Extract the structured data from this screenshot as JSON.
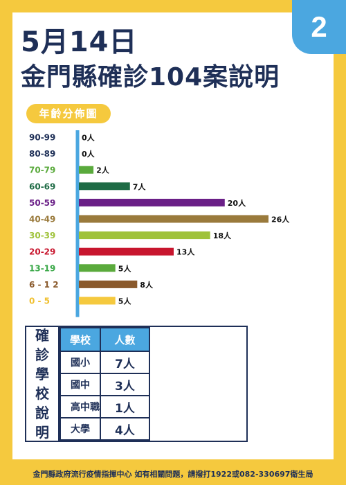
{
  "page_number": "2",
  "title_line1": "5月14日",
  "title_line2": "金門縣確診104案說明",
  "colors": {
    "background": "#f5c93e",
    "navy": "#1e2f57",
    "blue": "#4ba7e0"
  },
  "chart_data": {
    "type": "bar",
    "orientation": "horizontal",
    "title": "年齡分佈圖",
    "categories": [
      "90-99",
      "80-89",
      "70-79",
      "60-69",
      "50-59",
      "40-49",
      "30-39",
      "20-29",
      "13-19",
      "6 - 1 2",
      "0 - 5"
    ],
    "values": [
      0,
      0,
      2,
      7,
      20,
      26,
      18,
      13,
      5,
      8,
      5
    ],
    "value_labels": [
      "0人",
      "0人",
      "2人",
      "7人",
      "20人",
      "26人",
      "18人",
      "13人",
      "5人",
      "8人",
      "5人"
    ],
    "label_colors": [
      "#1e2f57",
      "#1e2f57",
      "#5aaa3c",
      "#1e6b45",
      "#6a1f87",
      "#9a7a3c",
      "#9fc23a",
      "#c8162e",
      "#3aa848",
      "#8a5a2c",
      "#f0c030"
    ],
    "bar_colors": [
      "#1e2f57",
      "#1e2f57",
      "#5aaa3c",
      "#1e6b45",
      "#6a1f87",
      "#9a7a3c",
      "#9fc23a",
      "#c8162e",
      "#5aaa3c",
      "#8a5a2c",
      "#f5c93e"
    ],
    "xlim": [
      0,
      26
    ],
    "axis_color": "#4ba7e0"
  },
  "school_table": {
    "side_label": [
      "確",
      "診",
      "學",
      "校",
      "說",
      "明"
    ],
    "headers": [
      "學校",
      "人數"
    ],
    "rows": [
      {
        "name": "國小",
        "count": "7人"
      },
      {
        "name": "國中",
        "count": "3人"
      },
      {
        "name": "高中職",
        "count": "1人"
      },
      {
        "name": "大學",
        "count": "4人"
      }
    ]
  },
  "footer": "金門縣政府流行疫情指揮中心 如有相關問題，請撥打1922或082-330697衛生局"
}
